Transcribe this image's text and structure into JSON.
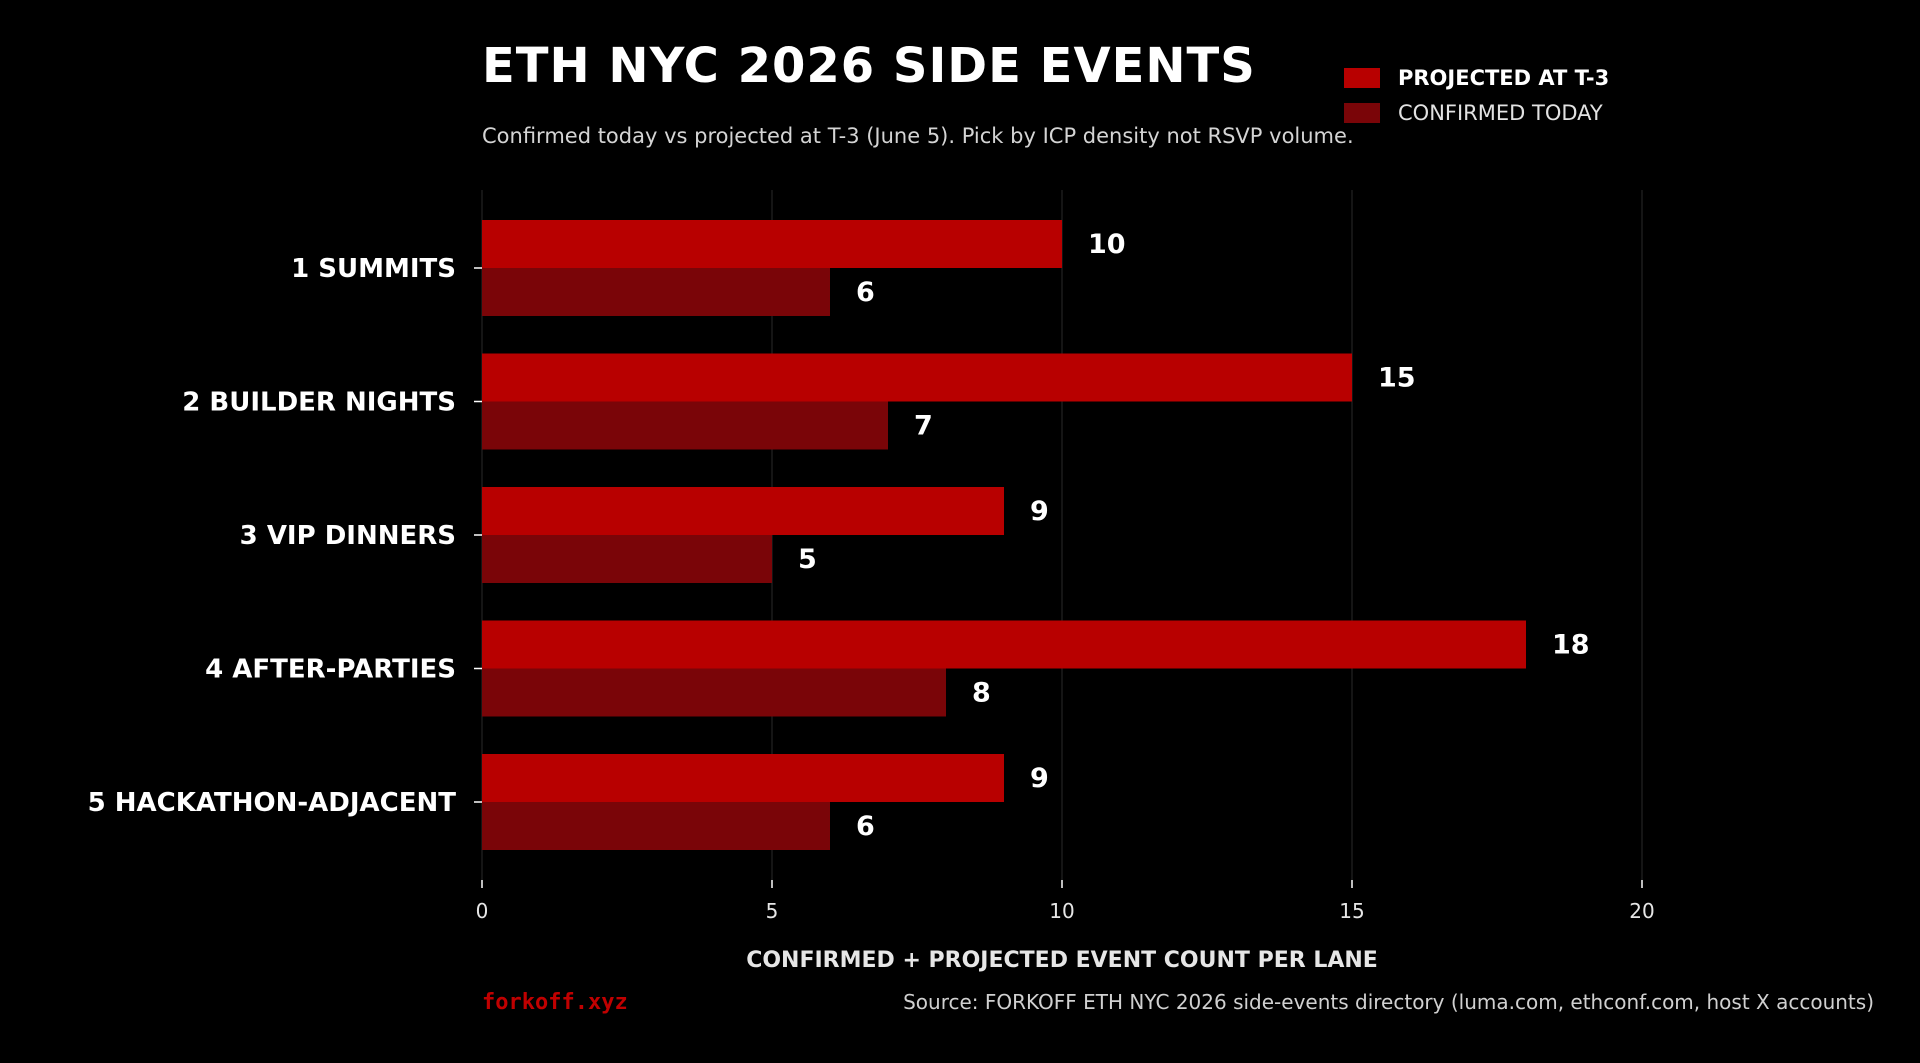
{
  "chart_data": {
    "type": "bar",
    "orientation": "horizontal",
    "title": "ETH NYC 2026 SIDE EVENTS",
    "subtitle": "Confirmed today vs projected at T-3 (June 5). Pick by ICP density not RSVP volume.",
    "xlabel": "CONFIRMED + PROJECTED EVENT COUNT PER LANE",
    "ylabel": "",
    "categories": [
      "1 SUMMITS",
      "2 BUILDER NIGHTS",
      "3 VIP DINNERS",
      "4 AFTER-PARTIES",
      "5 HACKATHON-ADJACENT"
    ],
    "series": [
      {
        "name": "PROJECTED AT T-3",
        "values": [
          10,
          15,
          9,
          18,
          9
        ],
        "color": "#b80000"
      },
      {
        "name": "CONFIRMED TODAY",
        "values": [
          6,
          7,
          5,
          8,
          6
        ],
        "color": "#7a0508"
      }
    ],
    "xlim": [
      0,
      20
    ],
    "xticks": [
      "0",
      "5",
      "10",
      "15",
      "20"
    ],
    "grid": true,
    "legend": "top-right"
  },
  "footer": {
    "brand": "forkoff.xyz",
    "source": "Source: FORKOFF ETH NYC 2026 side-events directory (luma.com, ethconf.com, host X accounts)"
  }
}
